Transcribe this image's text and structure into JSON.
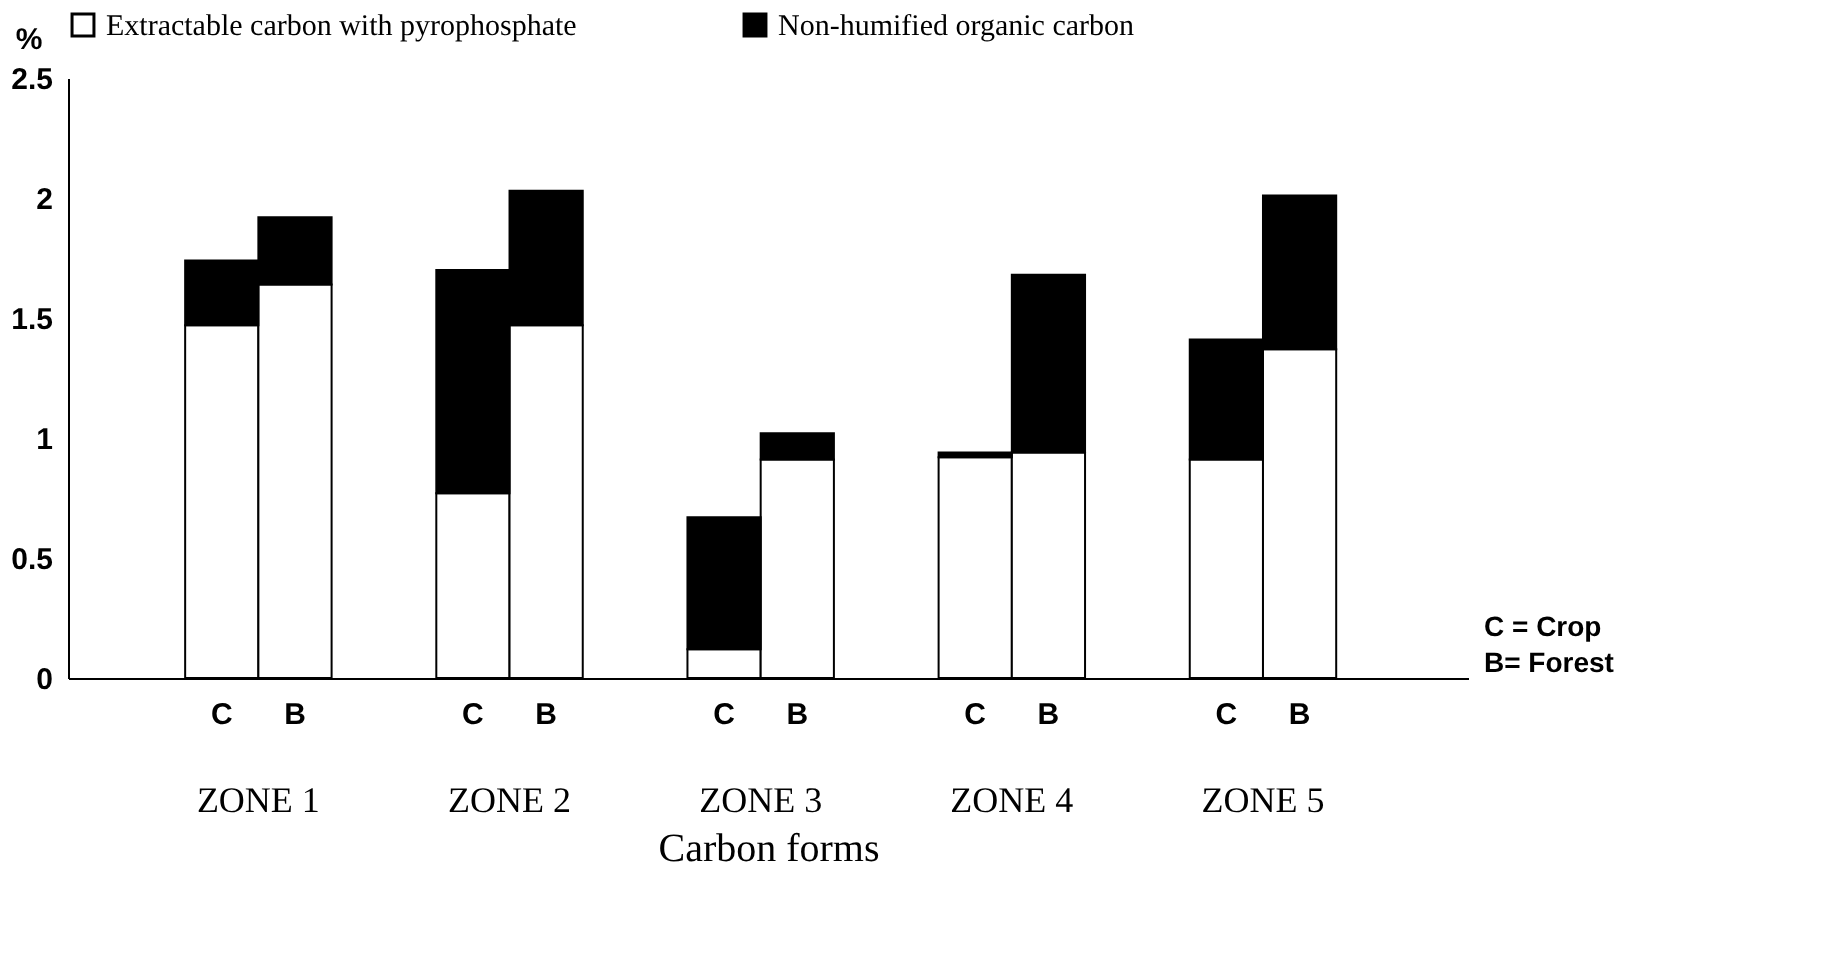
{
  "chart_data": {
    "type": "bar",
    "stacked": true,
    "xlabel": "Carbon forms",
    "ylabel": "%",
    "categories": [
      "C",
      "B",
      "C",
      "B",
      "C",
      "B",
      "C",
      "B",
      "C",
      "B"
    ],
    "series": [
      {
        "name": "Extractable carbon with pyrophosphate",
        "color": "#ffffff",
        "values": [
          1.47,
          1.64,
          0.77,
          1.47,
          0.12,
          0.91,
          0.92,
          0.94,
          0.91,
          1.37
        ]
      },
      {
        "name": "Non-humified organic carbon",
        "color": "#000000",
        "values": [
          0.27,
          0.28,
          0.93,
          0.56,
          0.55,
          0.11,
          0.02,
          0.74,
          0.5,
          0.64
        ]
      }
    ],
    "ylim": [
      0,
      2.5
    ],
    "yticks": [
      0,
      0.5,
      1,
      1.5,
      2,
      2.5
    ],
    "grid": false,
    "legend": "top",
    "annotations": [
      "ZONE 1",
      "ZONE 2",
      "ZONE 3",
      "ZONE 4",
      "ZONE 5",
      "C = Crop",
      "B= Forest"
    ]
  }
}
